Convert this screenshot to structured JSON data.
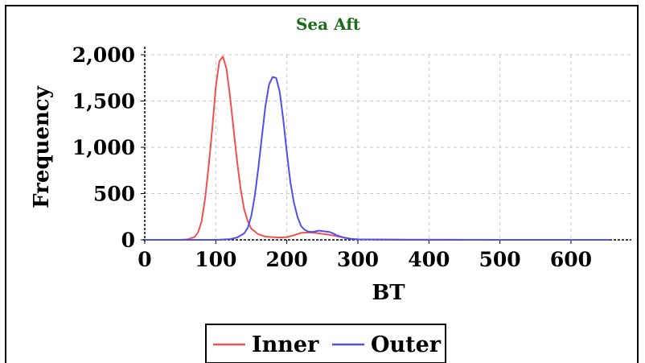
{
  "chart_data": {
    "type": "line",
    "title": "Sea Aft",
    "title_color": "#1a6b1a",
    "xlabel": "BT",
    "ylabel": "Frequency",
    "xlim": [
      0,
      685
    ],
    "ylim": [
      0,
      2000
    ],
    "x_ticks": [
      0,
      100,
      200,
      300,
      400,
      500,
      600
    ],
    "x_tick_labels": [
      "0",
      "100",
      "200",
      "300",
      "400",
      "500",
      "600"
    ],
    "y_ticks": [
      0,
      500,
      1000,
      1500,
      2000
    ],
    "y_tick_labels": [
      "0",
      "500",
      "1,000",
      "1,500",
      "2,000"
    ],
    "grid": true,
    "legend_position": "bottom-center",
    "series": [
      {
        "name": "Inner",
        "color": "#f05050",
        "x": [
          0,
          50,
          60,
          70,
          75,
          80,
          85,
          90,
          95,
          100,
          105,
          110,
          115,
          120,
          125,
          130,
          135,
          140,
          145,
          150,
          160,
          170,
          180,
          190,
          200,
          210,
          220,
          230,
          240,
          250,
          260,
          270,
          280,
          290,
          300,
          350,
          400,
          500,
          600,
          655
        ],
        "y": [
          0,
          0,
          5,
          30,
          80,
          200,
          450,
          800,
          1200,
          1650,
          1930,
          1980,
          1850,
          1550,
          1200,
          850,
          550,
          330,
          200,
          120,
          60,
          35,
          30,
          25,
          30,
          50,
          75,
          80,
          75,
          65,
          55,
          40,
          25,
          12,
          5,
          2,
          1,
          0,
          0,
          0
        ]
      },
      {
        "name": "Outer",
        "color": "#5050f0",
        "x": [
          0,
          100,
          120,
          130,
          140,
          145,
          150,
          155,
          160,
          165,
          170,
          175,
          180,
          185,
          190,
          195,
          200,
          205,
          210,
          215,
          220,
          225,
          230,
          235,
          240,
          245,
          250,
          255,
          260,
          265,
          270,
          280,
          290,
          300,
          350,
          400,
          500,
          600,
          655
        ],
        "y": [
          0,
          0,
          8,
          25,
          70,
          130,
          260,
          480,
          780,
          1120,
          1450,
          1680,
          1760,
          1750,
          1600,
          1300,
          950,
          620,
          400,
          250,
          150,
          110,
          90,
          85,
          90,
          100,
          95,
          90,
          85,
          70,
          50,
          25,
          10,
          5,
          2,
          1,
          0,
          0,
          0
        ]
      }
    ]
  }
}
